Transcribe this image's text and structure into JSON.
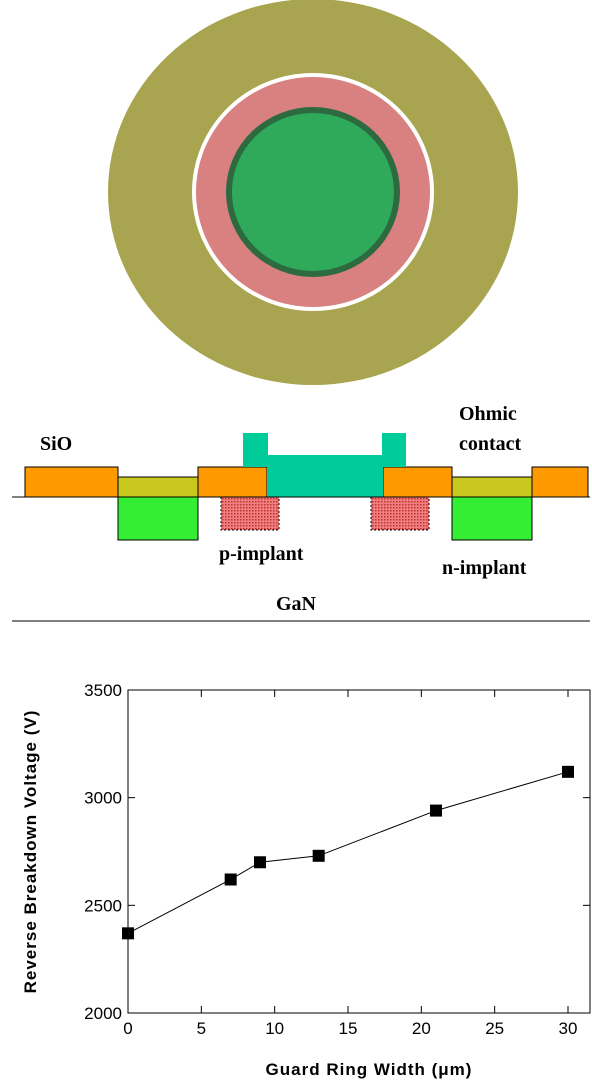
{
  "diagram": {
    "oxide_label": "SiO",
    "contact_label": [
      "Ohmic",
      "contact"
    ],
    "p_label": "p-implant",
    "n_label": "n-implant",
    "substrate_label": "GaN"
  },
  "chart_data": {
    "type": "line",
    "x_label": "Guard Ring Width (μm)",
    "y_label": "Reverse Breakdown Voltage (V)",
    "x": [
      0,
      7,
      9,
      13,
      21,
      30
    ],
    "values": [
      2370,
      2620,
      2700,
      2730,
      2940,
      3120
    ],
    "color": "#000000",
    "xlim": [
      0,
      31.5
    ],
    "xticks": [
      0,
      5,
      10,
      15,
      20,
      25,
      30
    ],
    "ylim": [
      2000,
      3500
    ],
    "yticks": [
      2000,
      2500,
      3000,
      3500
    ]
  }
}
